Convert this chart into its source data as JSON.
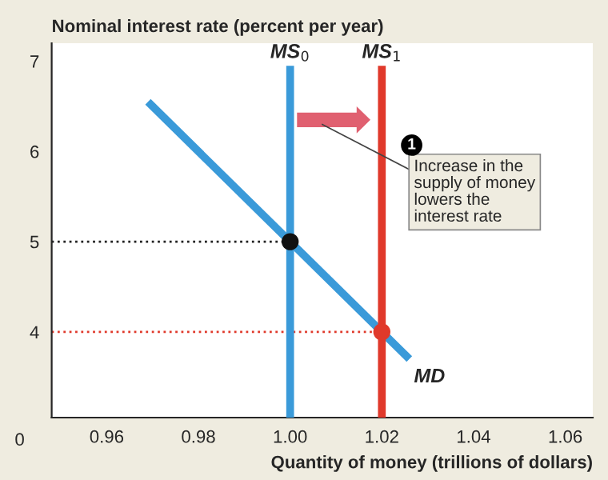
{
  "chart_data": {
    "type": "line",
    "ylabel": "Nominal interest rate (percent per year)",
    "xlabel": "Quantity of money (trillions of dollars)",
    "xlim": [
      0.948,
      1.066
    ],
    "ylim": [
      3.05,
      7.2
    ],
    "xticks": [
      0.96,
      0.98,
      {
        "value": 1.0,
        "label": "1.00"
      },
      1.02,
      1.04,
      1.06
    ],
    "yticks": [
      4,
      5,
      6,
      7
    ],
    "grid": false,
    "legend": false,
    "series": [
      {
        "name": "MD",
        "color": "#3a9ad9",
        "x": [
          0.969,
          1.026
        ],
        "values": [
          6.55,
          3.7
        ]
      },
      {
        "name": "MS$_{0}$",
        "color": "#3a9ad9",
        "x": [
          1.0,
          1.0
        ],
        "values": [
          3.05,
          6.95
        ]
      },
      {
        "name": "MS$_{1}$",
        "color": "#e0392b",
        "x": [
          1.02,
          1.02
        ],
        "values": [
          3.05,
          6.95
        ]
      },
      {
        "color": "#222222",
        "x": [
          0.948,
          1.0
        ],
        "values": [
          5,
          5
        ],
        "line_style": "dotted"
      },
      {
        "color": "#e0392b",
        "x": [
          0.948,
          1.02
        ],
        "values": [
          4,
          4
        ],
        "line_style": "dotted"
      },
      {
        "type": "scatter",
        "color": "#111111",
        "x": [
          1.0
        ],
        "values": [
          5
        ]
      },
      {
        "type": "scatter",
        "color": "#e0392b",
        "x": [
          1.02
        ],
        "values": [
          4
        ]
      }
    ],
    "annotations": [
      "1",
      "Increase in the\nsupply of money\nlowers the\ninterest rate",
      "0"
    ]
  }
}
